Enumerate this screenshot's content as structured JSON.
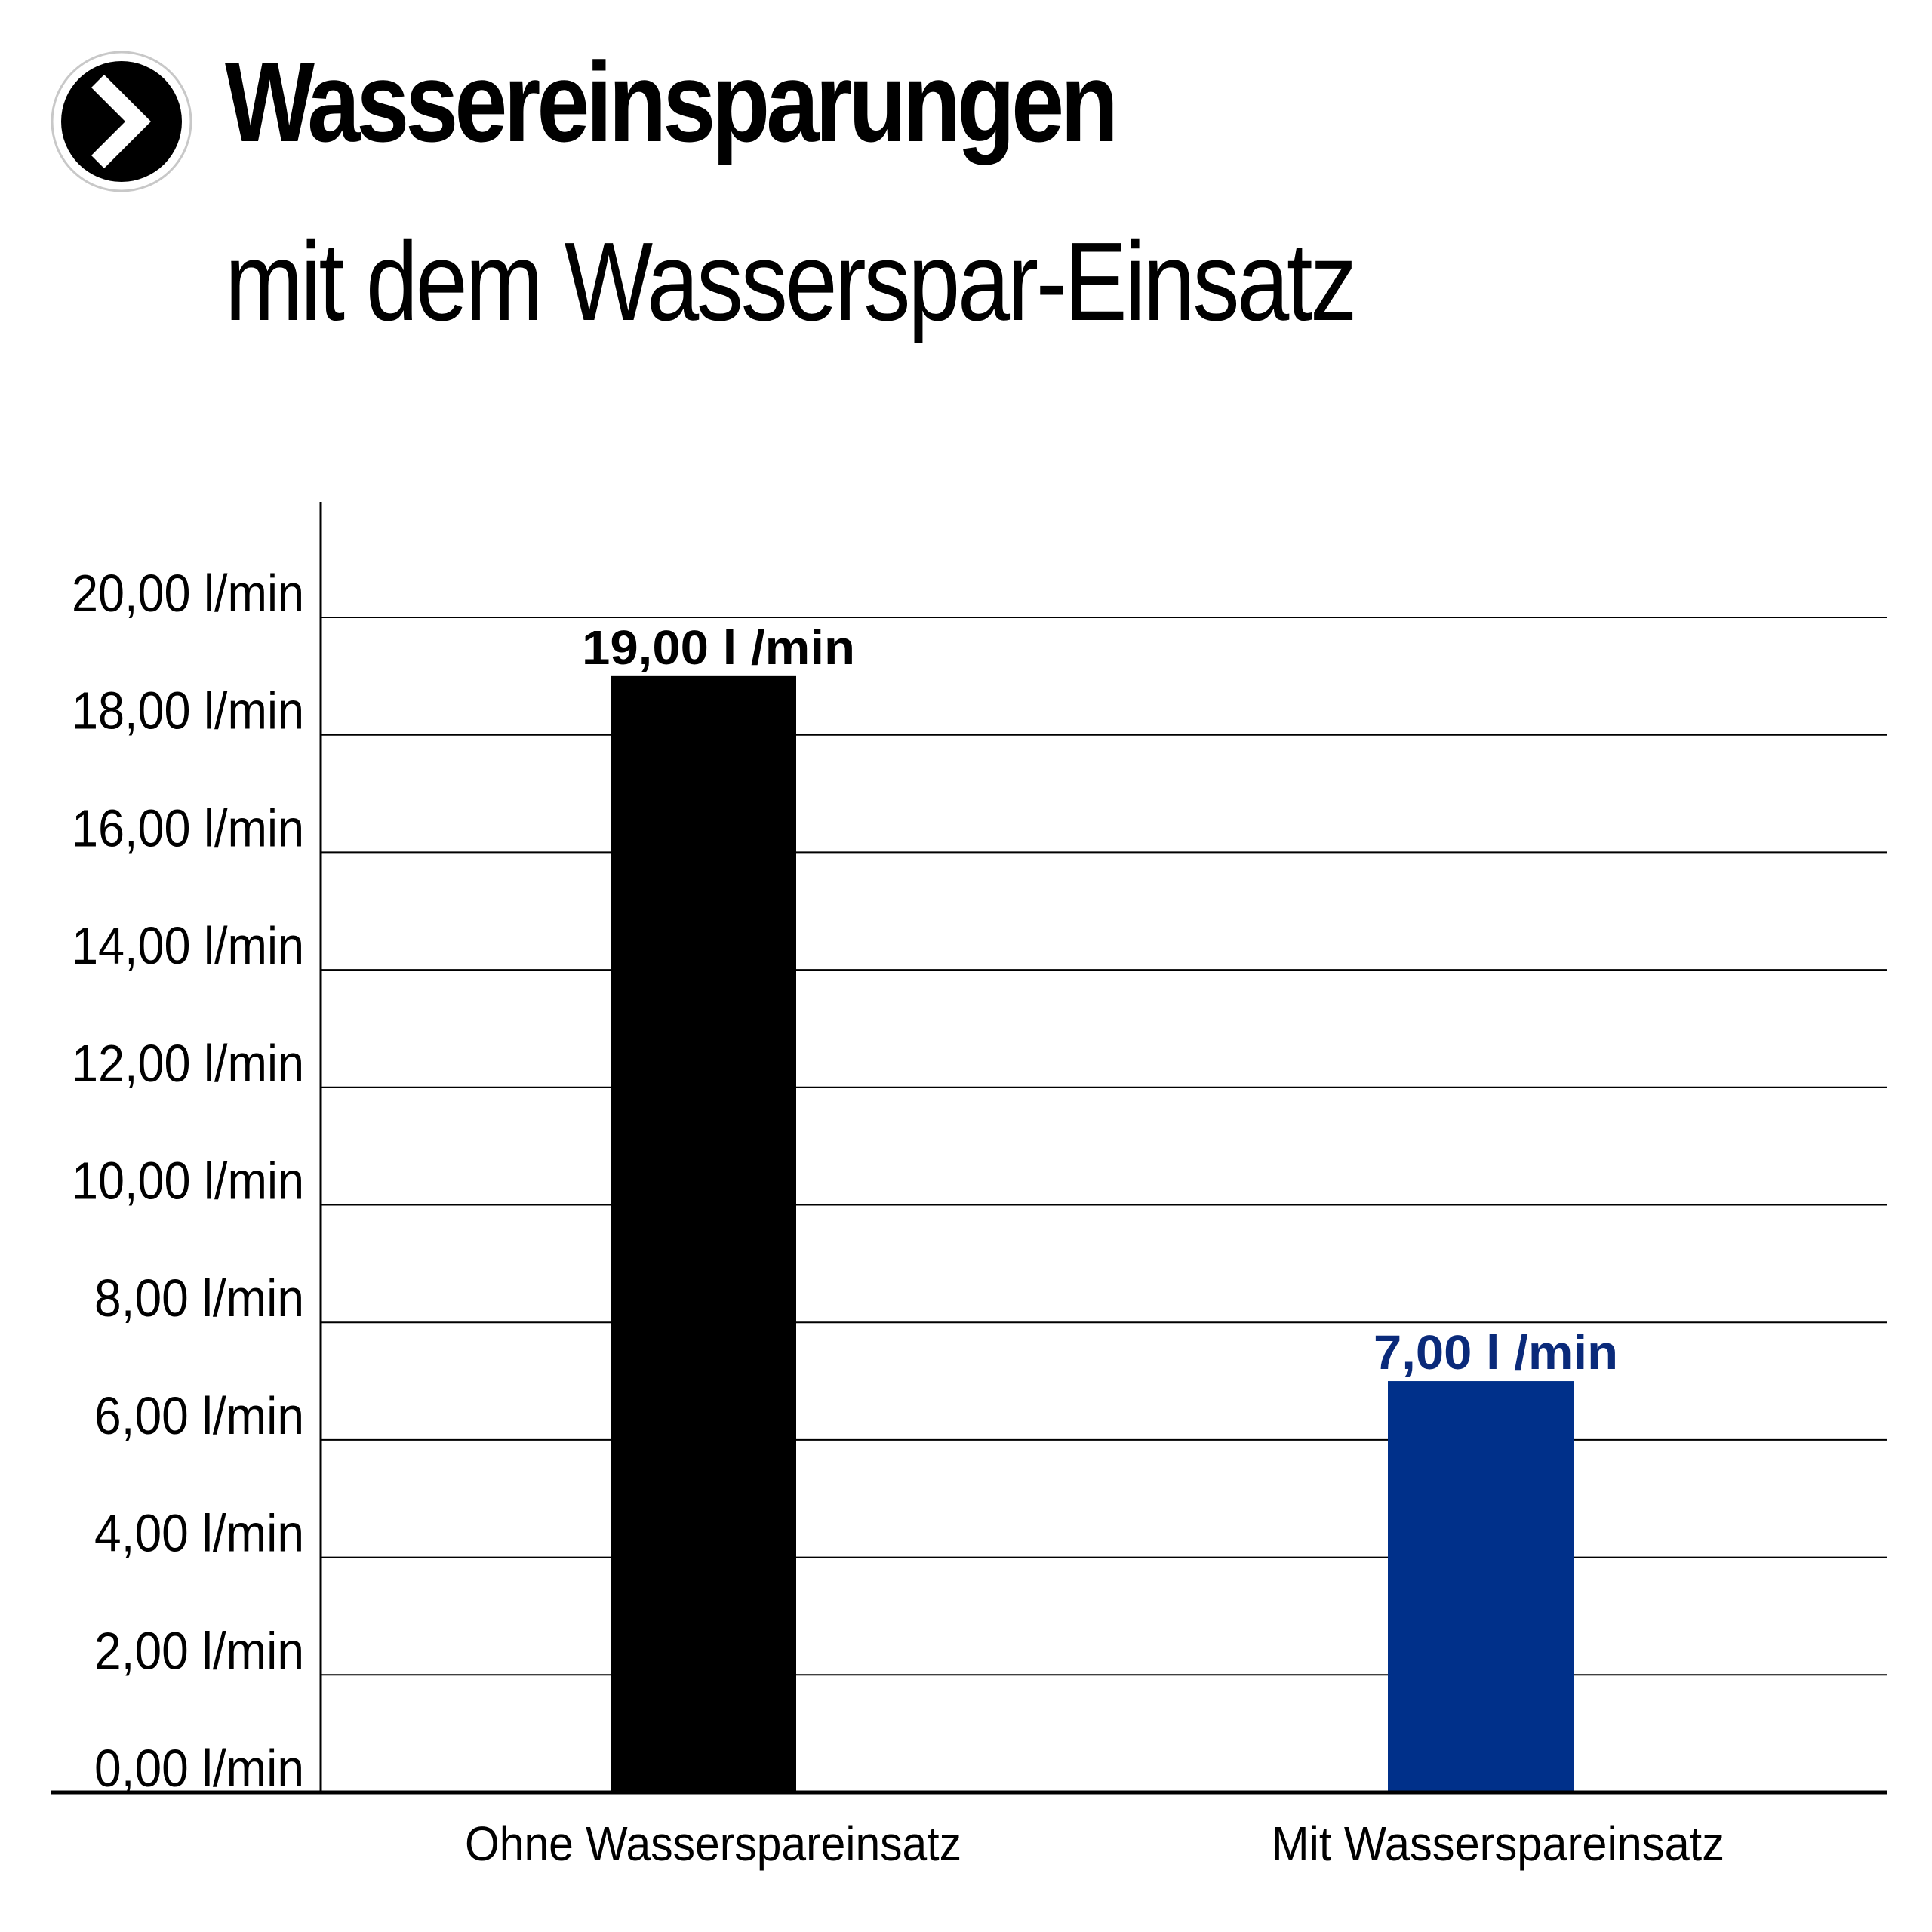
{
  "header": {
    "icon": "chevron-right-circle-icon",
    "title": "Wassereinsparungen",
    "subtitle": "mit dem Wasserspar-Einsatz"
  },
  "chart_data": {
    "type": "bar",
    "categories": [
      "Ohne Wasserspareinsatz",
      "Mit Wasserspareinsatz"
    ],
    "values": [
      19,
      7
    ],
    "value_labels": [
      "19,00 l /min",
      "7,00 l /min"
    ],
    "bar_colors": [
      "#000000",
      "#00308a"
    ],
    "value_label_colors": [
      "#000000",
      "#0a2a7a"
    ],
    "ylim": [
      0,
      20
    ],
    "yticks": [
      0,
      2,
      4,
      6,
      8,
      10,
      12,
      14,
      16,
      18,
      20
    ],
    "ytick_labels": [
      "0,00 l/min",
      "2,00 l/min",
      "4,00 l/min",
      "6,00 l/min",
      "8,00 l/min",
      "10,00 l/min",
      "12,00 l/min",
      "14,00 l/min",
      "16,00 l/min",
      "18,00 l/min",
      "20,00 l/min"
    ],
    "grid": true,
    "legend": "none",
    "title": "",
    "xlabel": "",
    "ylabel": ""
  }
}
